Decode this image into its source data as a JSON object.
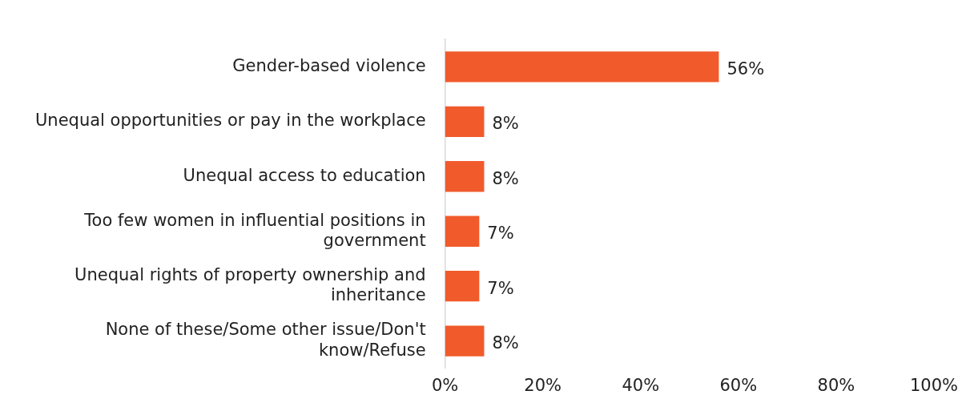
{
  "chart_data": {
    "type": "bar",
    "orientation": "horizontal",
    "categories": [
      "Gender-based violence",
      "Unequal opportunities or pay in the workplace",
      "Unequal access to education",
      "Too few women in influential positions in government",
      "Unequal rights of property ownership and inheritance",
      "None of these/Some other issue/Don't know/Refuse"
    ],
    "values": [
      56,
      8,
      8,
      7,
      7,
      8
    ],
    "value_labels": [
      "56%",
      "8%",
      "8%",
      "7%",
      "7%",
      "8%"
    ],
    "color": "#f15a2b",
    "xlim": [
      0,
      100
    ],
    "xticks": [
      {
        "value": 0,
        "label": "0%"
      },
      {
        "value": 20,
        "label": "20%"
      },
      {
        "value": 40,
        "label": "40%"
      },
      {
        "value": 60,
        "label": "60%"
      },
      {
        "value": 80,
        "label": "80%"
      },
      {
        "value": 100,
        "label": "100%"
      }
    ],
    "grid": false,
    "legend": false
  }
}
